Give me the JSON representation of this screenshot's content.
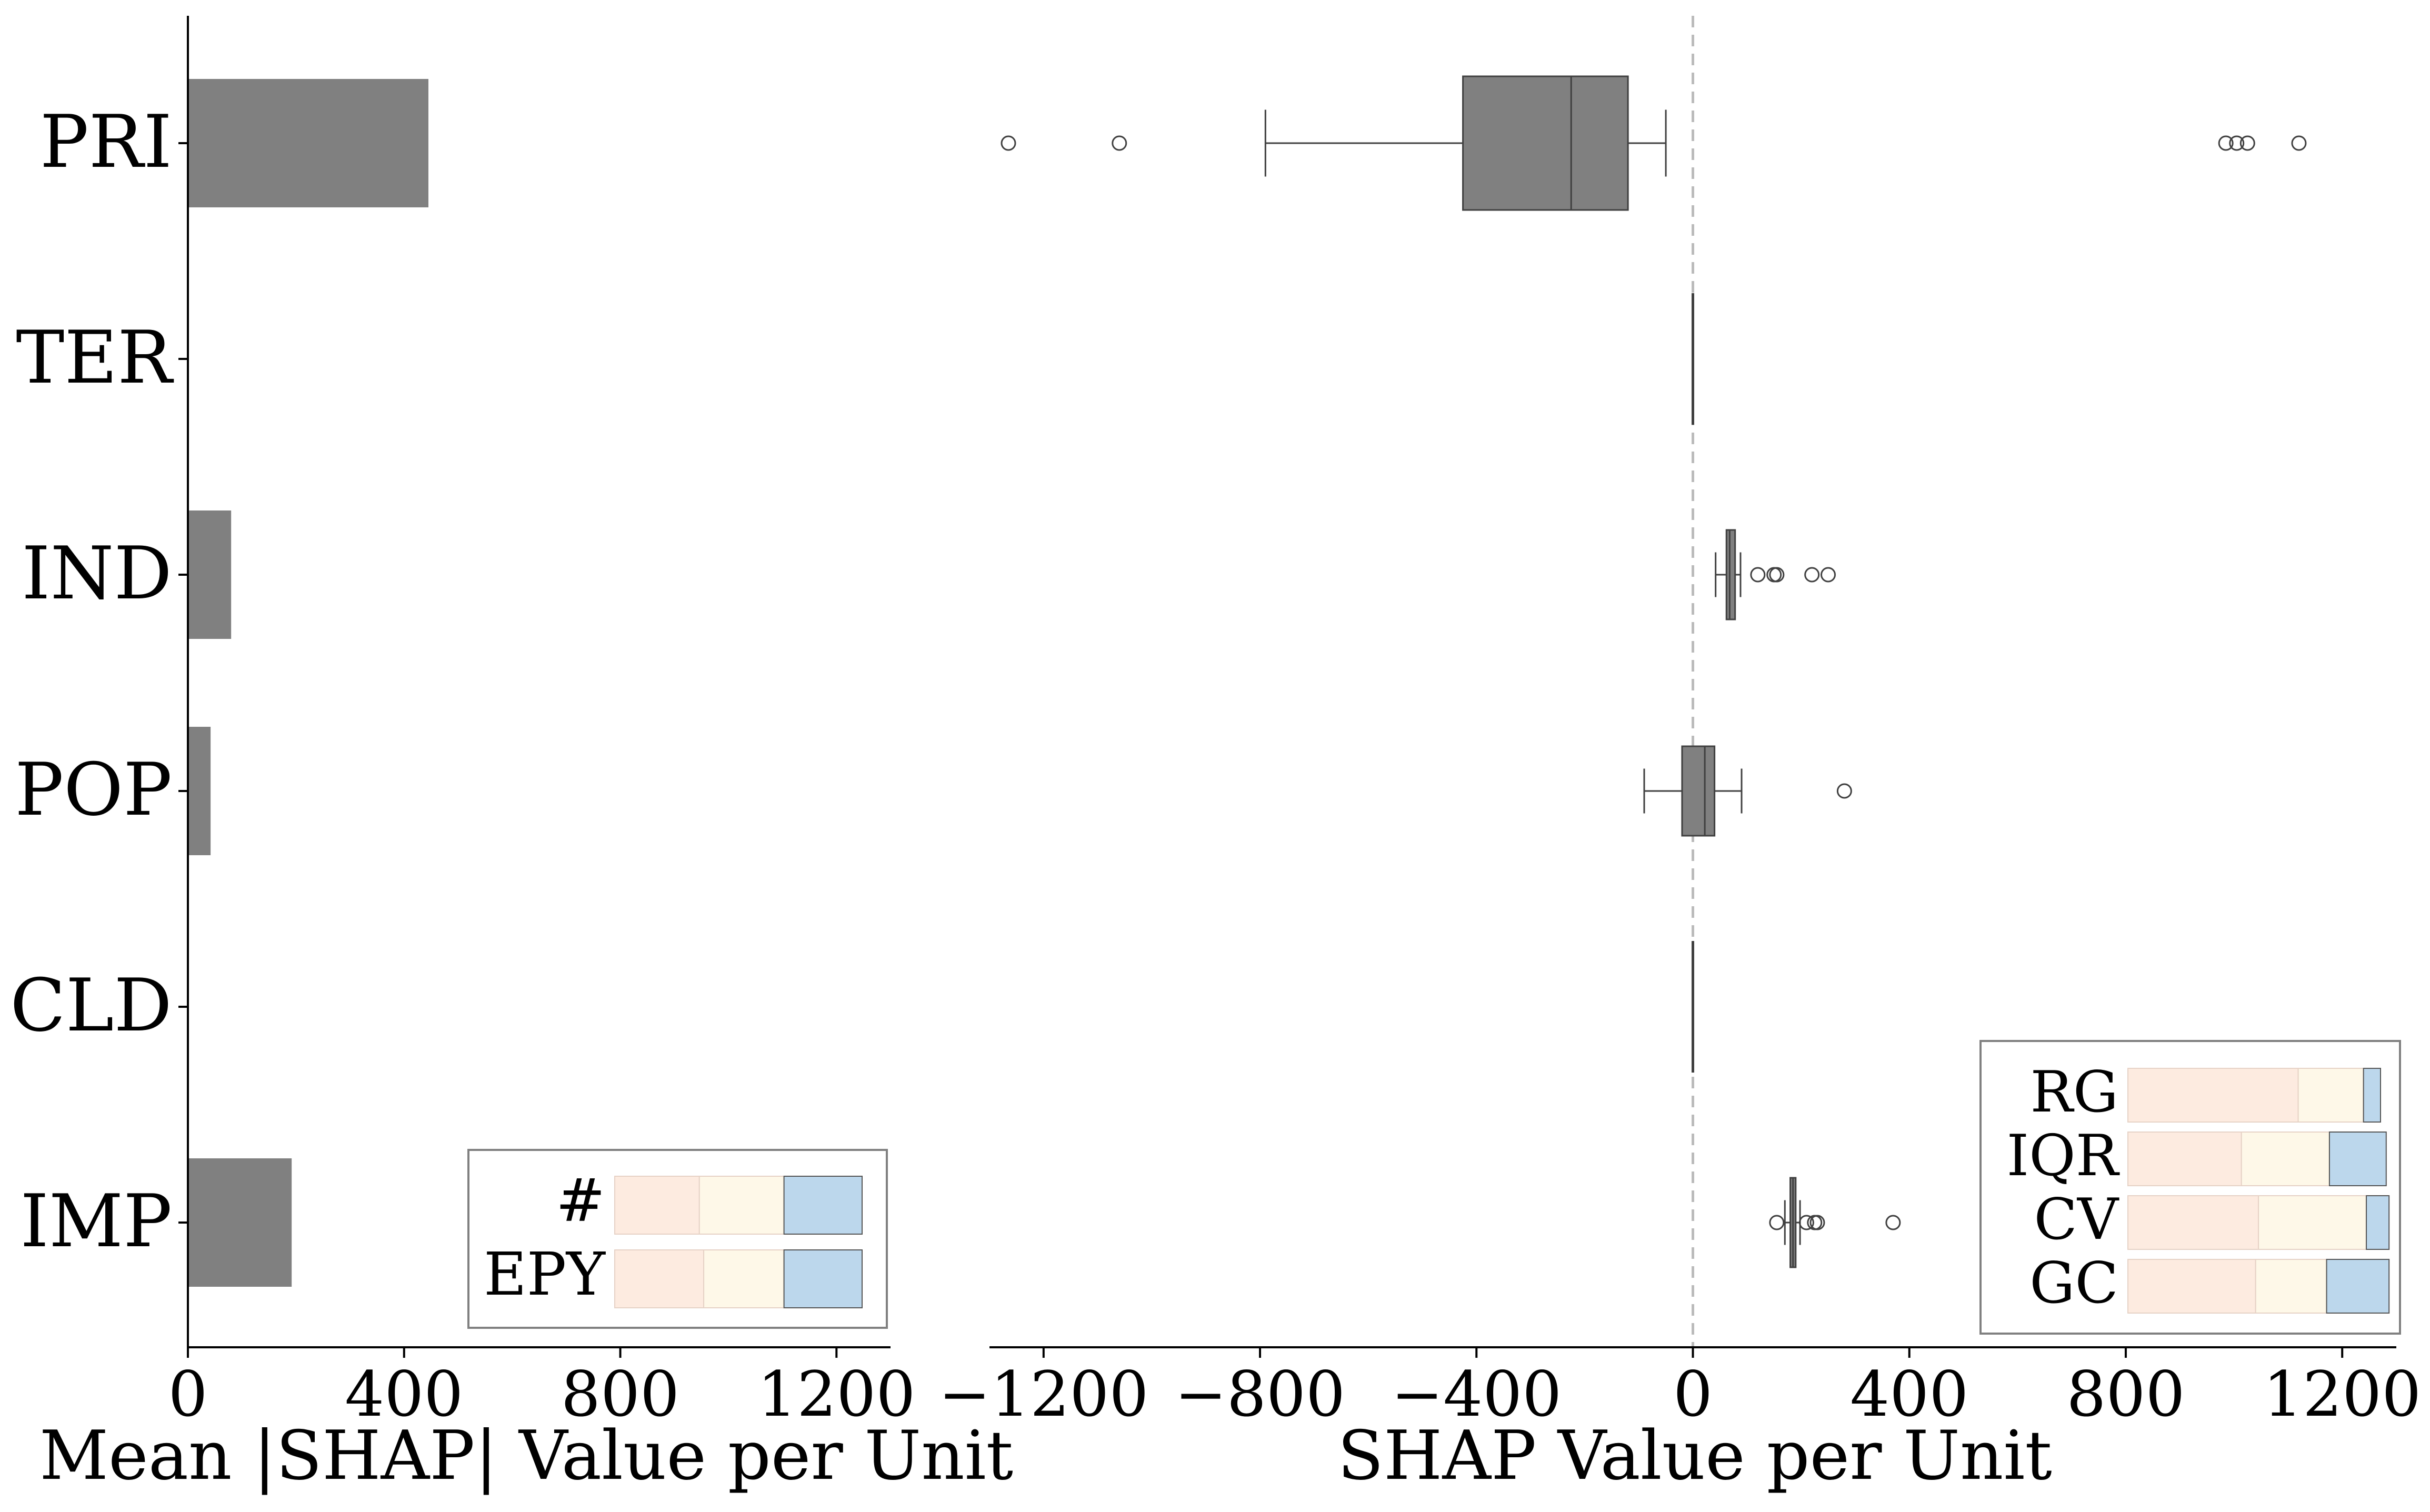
{
  "chart_data": [
    {
      "type": "bar",
      "orientation": "horizontal",
      "categories": [
        "PRI",
        "TER",
        "IND",
        "POP",
        "CLD",
        "IMP"
      ],
      "values": [
        445,
        0,
        80,
        42,
        0,
        192
      ],
      "xlabel": "Mean |SHAP| Value per Unit",
      "xlim": [
        0,
        1300
      ],
      "xticks": [
        0,
        400,
        800,
        1200
      ],
      "grid": false,
      "bar_color": "#808080",
      "legend": {
        "placement": "bottom-right",
        "rows": [
          {
            "label": "#",
            "segments": [
              0.39,
              0.39,
              0.36
            ]
          },
          {
            "label": "EPY",
            "segments": [
              0.41,
              0.37,
              0.36
            ]
          }
        ]
      }
    },
    {
      "type": "box",
      "orientation": "horizontal",
      "categories": [
        "PRI",
        "TER",
        "IND",
        "POP",
        "CLD",
        "IMP"
      ],
      "xlabel": "SHAP Value per Unit",
      "xlim": [
        -1300,
        1300
      ],
      "xticks": [
        -1200,
        -800,
        -400,
        0,
        400,
        800,
        1200
      ],
      "reference_line": 0,
      "grid": false,
      "box_color": "#808080",
      "boxes": [
        {
          "category": "PRI",
          "whisker_low": -790,
          "q1": -425,
          "median": -225,
          "q3": -120,
          "whisker_high": -50,
          "outliers": [
            -1265,
            -1060,
            985,
            1005,
            1025,
            1120
          ]
        },
        {
          "category": "TER",
          "whisker_low": 0,
          "q1": 0,
          "median": 0,
          "q3": 0,
          "whisker_high": 0,
          "outliers": []
        },
        {
          "category": "IND",
          "whisker_low": 42,
          "q1": 62,
          "median": 68,
          "q3": 78,
          "whisker_high": 88,
          "outliers": [
            120,
            150,
            155,
            220,
            250
          ]
        },
        {
          "category": "POP",
          "whisker_low": -90,
          "q1": -20,
          "median": 22,
          "q3": 40,
          "whisker_high": 90,
          "outliers": [
            280
          ]
        },
        {
          "category": "CLD",
          "whisker_low": 0,
          "q1": 0,
          "median": 0,
          "q3": 0,
          "whisker_high": 0,
          "outliers": []
        },
        {
          "category": "IMP",
          "whisker_low": 170,
          "q1": 180,
          "median": 185,
          "q3": 190,
          "whisker_high": 198,
          "outliers": [
            155,
            210,
            225,
            230,
            370
          ]
        }
      ],
      "legend": {
        "placement": "bottom-right",
        "rows": [
          {
            "label": "RG",
            "segments": [
              0.6,
              0.23,
              0.06
            ]
          },
          {
            "label": "IQR",
            "segments": [
              0.4,
              0.31,
              0.2
            ]
          },
          {
            "label": "CV",
            "segments": [
              0.46,
              0.38,
              0.08
            ]
          },
          {
            "label": "GC",
            "segments": [
              0.45,
              0.25,
              0.22
            ]
          }
        ]
      }
    }
  ],
  "colors": {
    "axis": "#000000",
    "bar": "#808080",
    "box_edge": "#404040",
    "zero_line": "#bbbbbb",
    "legend_segments": [
      "#fdebe0",
      "#fef8e8",
      "#bcd7ec"
    ],
    "legend_frame": "#808080"
  }
}
